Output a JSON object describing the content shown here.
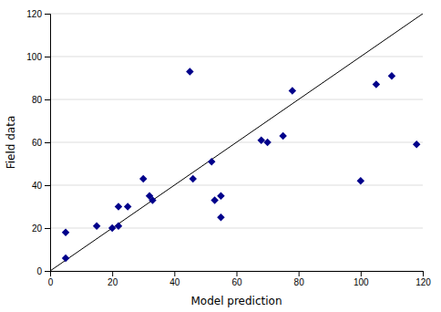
{
  "chart_data": {
    "type": "scatter",
    "xlabel": "Model prediction",
    "ylabel": "Field data",
    "x": [
      5,
      5,
      15,
      20,
      22,
      22,
      25,
      30,
      32,
      33,
      45,
      46,
      52,
      53,
      55,
      55,
      68,
      70,
      75,
      78,
      100,
      105,
      110,
      118
    ],
    "values": [
      6,
      18,
      21,
      20,
      30,
      21,
      30,
      43,
      35,
      33,
      93,
      43,
      51,
      33,
      35,
      25,
      61,
      60,
      63,
      84,
      42,
      87,
      91,
      59
    ],
    "color": "#00008B",
    "marker": "diamond",
    "xlim": [
      0,
      120
    ],
    "ylim": [
      0,
      120
    ],
    "xticks": [
      0,
      20,
      40,
      60,
      80,
      100,
      120
    ],
    "yticks": [
      0,
      20,
      40,
      60,
      80,
      100,
      120
    ],
    "grid": "y"
  }
}
